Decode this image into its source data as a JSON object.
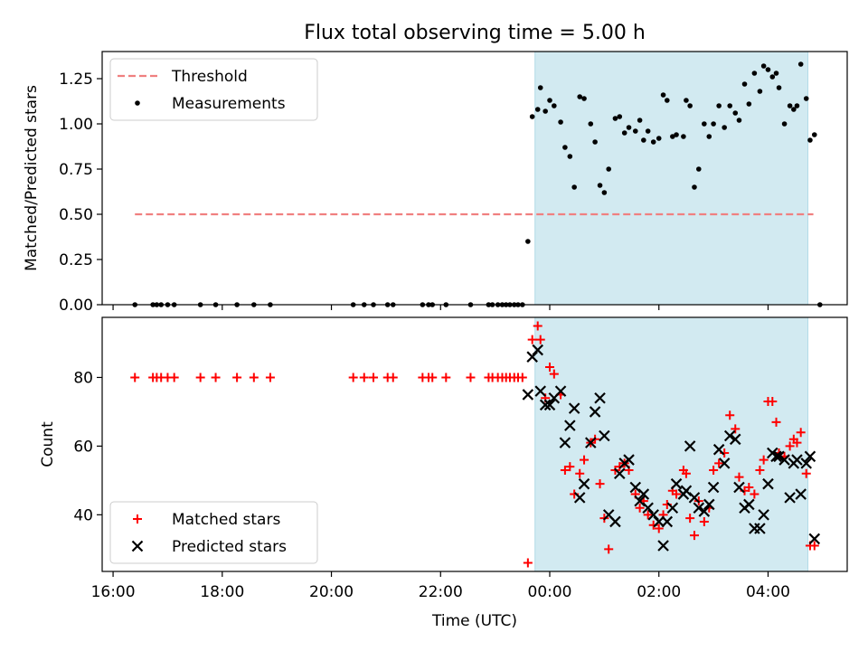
{
  "figure": {
    "title": "Flux total observing time = 5.00 h"
  },
  "chart_data": [
    {
      "type": "scatter",
      "panel": "top",
      "title": "Flux total observing time = 5.00 h",
      "xlabel": "",
      "ylabel": "Matched/Predicted stars",
      "xlim": [
        15.8,
        29.45
      ],
      "ylim": [
        0.0,
        1.4
      ],
      "yticks": [
        0.0,
        0.25,
        0.5,
        0.75,
        1.0,
        1.25
      ],
      "ytick_labels": [
        "0.00",
        "0.25",
        "0.50",
        "0.75",
        "1.00",
        "1.25"
      ],
      "legend": {
        "placement": "upper-left",
        "entries": [
          "Threshold",
          "Measurements"
        ]
      },
      "shaded_region": {
        "x": [
          23.73,
          28.73
        ],
        "color": "#add8e6"
      },
      "threshold": {
        "name": "Threshold",
        "y": 0.5,
        "x": [
          16.4,
          28.83
        ],
        "color": "#f08080",
        "style": "dashed"
      },
      "series": [
        {
          "name": "Measurements",
          "color": "#000000",
          "marker": "dot",
          "points": [
            [
              16.4,
              0.0
            ],
            [
              16.73,
              0.0
            ],
            [
              16.8,
              0.0
            ],
            [
              16.88,
              0.0
            ],
            [
              17.0,
              0.0
            ],
            [
              17.12,
              0.0
            ],
            [
              17.6,
              0.0
            ],
            [
              17.88,
              0.0
            ],
            [
              18.27,
              0.0
            ],
            [
              18.58,
              0.0
            ],
            [
              18.88,
              0.0
            ],
            [
              20.4,
              0.0
            ],
            [
              20.6,
              0.0
            ],
            [
              20.77,
              0.0
            ],
            [
              21.03,
              0.0
            ],
            [
              21.13,
              0.0
            ],
            [
              21.67,
              0.0
            ],
            [
              21.78,
              0.0
            ],
            [
              21.85,
              0.0
            ],
            [
              22.1,
              0.0
            ],
            [
              22.55,
              0.0
            ],
            [
              22.88,
              0.0
            ],
            [
              22.95,
              0.0
            ],
            [
              23.05,
              0.0
            ],
            [
              23.13,
              0.0
            ],
            [
              23.2,
              0.0
            ],
            [
              23.27,
              0.0
            ],
            [
              23.35,
              0.0
            ],
            [
              23.42,
              0.0
            ],
            [
              23.5,
              0.0
            ],
            [
              23.6,
              0.35
            ],
            [
              23.68,
              1.04
            ],
            [
              23.78,
              1.08
            ],
            [
              23.83,
              1.2
            ],
            [
              23.92,
              1.07
            ],
            [
              24.0,
              1.13
            ],
            [
              24.08,
              1.1
            ],
            [
              24.2,
              1.01
            ],
            [
              24.28,
              0.87
            ],
            [
              24.37,
              0.82
            ],
            [
              24.45,
              0.65
            ],
            [
              24.55,
              1.15
            ],
            [
              24.63,
              1.14
            ],
            [
              24.75,
              1.0
            ],
            [
              24.83,
              0.9
            ],
            [
              24.92,
              0.66
            ],
            [
              25.0,
              0.62
            ],
            [
              25.08,
              0.75
            ],
            [
              25.2,
              1.03
            ],
            [
              25.28,
              1.04
            ],
            [
              25.37,
              0.95
            ],
            [
              25.45,
              0.98
            ],
            [
              25.57,
              0.96
            ],
            [
              25.65,
              1.02
            ],
            [
              25.72,
              0.91
            ],
            [
              25.8,
              0.96
            ],
            [
              25.9,
              0.9
            ],
            [
              26.0,
              0.92
            ],
            [
              26.08,
              1.16
            ],
            [
              26.15,
              1.13
            ],
            [
              26.25,
              0.93
            ],
            [
              26.32,
              0.94
            ],
            [
              26.45,
              0.93
            ],
            [
              26.5,
              1.13
            ],
            [
              26.57,
              1.1
            ],
            [
              26.65,
              0.65
            ],
            [
              26.73,
              0.75
            ],
            [
              26.83,
              1.0
            ],
            [
              26.92,
              0.93
            ],
            [
              27.0,
              1.0
            ],
            [
              27.1,
              1.1
            ],
            [
              27.2,
              0.98
            ],
            [
              27.3,
              1.1
            ],
            [
              27.4,
              1.06
            ],
            [
              27.47,
              1.02
            ],
            [
              27.57,
              1.22
            ],
            [
              27.65,
              1.11
            ],
            [
              27.75,
              1.28
            ],
            [
              27.85,
              1.18
            ],
            [
              27.92,
              1.32
            ],
            [
              28.0,
              1.3
            ],
            [
              28.08,
              1.26
            ],
            [
              28.15,
              1.28
            ],
            [
              28.2,
              1.2
            ],
            [
              28.3,
              1.0
            ],
            [
              28.4,
              1.1
            ],
            [
              28.47,
              1.08
            ],
            [
              28.53,
              1.1
            ],
            [
              28.6,
              1.33
            ],
            [
              28.7,
              1.14
            ],
            [
              28.77,
              0.91
            ],
            [
              28.85,
              0.94
            ],
            [
              28.95,
              0.0
            ]
          ]
        }
      ]
    },
    {
      "type": "scatter",
      "panel": "bottom",
      "xlabel": "Time (UTC)",
      "ylabel": "Count",
      "xlim": [
        15.8,
        29.45
      ],
      "ylim": [
        23.5,
        97.5
      ],
      "xticks": [
        16,
        18,
        20,
        22,
        24,
        26,
        28
      ],
      "xtick_labels": [
        "16:00",
        "18:00",
        "20:00",
        "22:00",
        "00:00",
        "02:00",
        "04:00"
      ],
      "yticks": [
        40,
        60,
        80
      ],
      "ytick_labels": [
        "40",
        "60",
        "80"
      ],
      "legend": {
        "placement": "lower-left",
        "entries": [
          "Matched stars",
          "Predicted stars"
        ]
      },
      "shaded_region": {
        "x": [
          23.73,
          28.73
        ],
        "color": "#add8e6"
      },
      "series": [
        {
          "name": "Matched stars",
          "color": "#ff0000",
          "marker": "plus",
          "points": [
            [
              16.4,
              80
            ],
            [
              16.73,
              80
            ],
            [
              16.8,
              80
            ],
            [
              16.88,
              80
            ],
            [
              17.0,
              80
            ],
            [
              17.12,
              80
            ],
            [
              17.6,
              80
            ],
            [
              17.88,
              80
            ],
            [
              18.27,
              80
            ],
            [
              18.58,
              80
            ],
            [
              18.88,
              80
            ],
            [
              20.4,
              80
            ],
            [
              20.6,
              80
            ],
            [
              20.77,
              80
            ],
            [
              21.03,
              80
            ],
            [
              21.13,
              80
            ],
            [
              21.67,
              80
            ],
            [
              21.78,
              80
            ],
            [
              21.85,
              80
            ],
            [
              22.1,
              80
            ],
            [
              22.55,
              80
            ],
            [
              22.88,
              80
            ],
            [
              22.95,
              80
            ],
            [
              23.05,
              80
            ],
            [
              23.13,
              80
            ],
            [
              23.2,
              80
            ],
            [
              23.27,
              80
            ],
            [
              23.35,
              80
            ],
            [
              23.42,
              80
            ],
            [
              23.5,
              80
            ],
            [
              23.6,
              26
            ],
            [
              23.68,
              91
            ],
            [
              23.78,
              95
            ],
            [
              23.83,
              91
            ],
            [
              23.92,
              74
            ],
            [
              24.0,
              83
            ],
            [
              24.08,
              81
            ],
            [
              24.2,
              75
            ],
            [
              24.28,
              53
            ],
            [
              24.37,
              54
            ],
            [
              24.45,
              46
            ],
            [
              24.55,
              52
            ],
            [
              24.63,
              56
            ],
            [
              24.75,
              61
            ],
            [
              24.83,
              62
            ],
            [
              24.92,
              49
            ],
            [
              25.0,
              39
            ],
            [
              25.08,
              30
            ],
            [
              25.2,
              53
            ],
            [
              25.28,
              54
            ],
            [
              25.37,
              55
            ],
            [
              25.45,
              53
            ],
            [
              25.57,
              46
            ],
            [
              25.65,
              42
            ],
            [
              25.72,
              44
            ],
            [
              25.8,
              40
            ],
            [
              25.9,
              37
            ],
            [
              26.0,
              36
            ],
            [
              26.08,
              40
            ],
            [
              26.15,
              43
            ],
            [
              26.25,
              47
            ],
            [
              26.32,
              46
            ],
            [
              26.45,
              53
            ],
            [
              26.5,
              52
            ],
            [
              26.57,
              39
            ],
            [
              26.65,
              34
            ],
            [
              26.73,
              44
            ],
            [
              26.83,
              38
            ],
            [
              26.92,
              42
            ],
            [
              27.0,
              53
            ],
            [
              27.1,
              55
            ],
            [
              27.2,
              58
            ],
            [
              27.3,
              69
            ],
            [
              27.4,
              65
            ],
            [
              27.47,
              51
            ],
            [
              27.57,
              47
            ],
            [
              27.65,
              48
            ],
            [
              27.75,
              46
            ],
            [
              27.85,
              53
            ],
            [
              27.92,
              56
            ],
            [
              28.0,
              73
            ],
            [
              28.08,
              73
            ],
            [
              28.15,
              67
            ],
            [
              28.2,
              58
            ],
            [
              28.3,
              57
            ],
            [
              28.4,
              60
            ],
            [
              28.47,
              62
            ],
            [
              28.53,
              61
            ],
            [
              28.6,
              64
            ],
            [
              28.7,
              52
            ],
            [
              28.77,
              31
            ],
            [
              28.85,
              31
            ]
          ]
        },
        {
          "name": "Predicted stars",
          "color": "#000000",
          "marker": "x",
          "points": [
            [
              23.6,
              75
            ],
            [
              23.68,
              86
            ],
            [
              23.78,
              88
            ],
            [
              23.83,
              76
            ],
            [
              23.92,
              72
            ],
            [
              24.0,
              72
            ],
            [
              24.08,
              74
            ],
            [
              24.2,
              76
            ],
            [
              24.28,
              61
            ],
            [
              24.37,
              66
            ],
            [
              24.45,
              71
            ],
            [
              24.55,
              45
            ],
            [
              24.63,
              49
            ],
            [
              24.75,
              61
            ],
            [
              24.83,
              70
            ],
            [
              24.92,
              74
            ],
            [
              25.0,
              63
            ],
            [
              25.08,
              40
            ],
            [
              25.2,
              38
            ],
            [
              25.28,
              52
            ],
            [
              25.37,
              55
            ],
            [
              25.45,
              56
            ],
            [
              25.57,
              48
            ],
            [
              25.65,
              44
            ],
            [
              25.72,
              46
            ],
            [
              25.8,
              42
            ],
            [
              25.9,
              40
            ],
            [
              26.0,
              38
            ],
            [
              26.08,
              31
            ],
            [
              26.15,
              38
            ],
            [
              26.25,
              42
            ],
            [
              26.32,
              49
            ],
            [
              26.45,
              46
            ],
            [
              26.5,
              47
            ],
            [
              26.57,
              60
            ],
            [
              26.65,
              45
            ],
            [
              26.73,
              42
            ],
            [
              26.83,
              41
            ],
            [
              26.92,
              43
            ],
            [
              27.0,
              48
            ],
            [
              27.1,
              59
            ],
            [
              27.2,
              55
            ],
            [
              27.3,
              63
            ],
            [
              27.4,
              62
            ],
            [
              27.47,
              48
            ],
            [
              27.57,
              42
            ],
            [
              27.65,
              43
            ],
            [
              27.75,
              36
            ],
            [
              27.85,
              36
            ],
            [
              27.92,
              40
            ],
            [
              28.0,
              49
            ],
            [
              28.08,
              58
            ],
            [
              28.15,
              57
            ],
            [
              28.2,
              57
            ],
            [
              28.3,
              56
            ],
            [
              28.4,
              45
            ],
            [
              28.47,
              55
            ],
            [
              28.53,
              56
            ],
            [
              28.6,
              46
            ],
            [
              28.7,
              55
            ],
            [
              28.77,
              57
            ],
            [
              28.85,
              33
            ]
          ]
        }
      ]
    }
  ]
}
